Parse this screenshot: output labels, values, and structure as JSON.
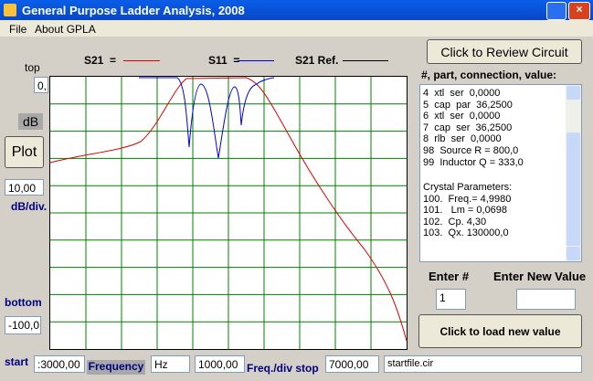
{
  "title_bar": {
    "title": "General Purpose Ladder Analysis, 2008"
  },
  "menu": [
    "File",
    "About GPLA"
  ],
  "legend": {
    "s21": "S21  =",
    "s11": "S11  =",
    "s21_ref": "S21 Ref."
  },
  "left_panel": {
    "top_label": "top",
    "top_value": "0,",
    "unit": "dB",
    "plot_button": "Plot",
    "div_value": "10,00",
    "div_label": "dB/div.",
    "bottom_label": "bottom",
    "bottom_value": "-100,0"
  },
  "bottom_row": {
    "start_label": "start",
    "start_value": ":3000,00",
    "frequency_label": "Frequency",
    "unit": "Hz",
    "div_value": "1000,00",
    "div_stop_label": "Freq./div stop",
    "stop_value": "7000,00",
    "file": "startfile.cir"
  },
  "right_panel": {
    "review_button": "Click to Review Circuit",
    "list_header": "#, part, connection, value:",
    "list": {
      "lines": [
        "4  xtl  ser  0,0000",
        "5  cap  par  36,2500",
        "6  xtl  ser  0,0000",
        "7  cap  ser  36,2500",
        "8  rlb  ser  0,0000",
        "98  Source R = 800,0",
        "99  Inductor Q = 333,0"
      ],
      "crystal": [
        "Crystal Parameters:",
        "100.  Freq.= 4,9980",
        "101.   Lm = 0,0698",
        "102.  Cp. 4,30",
        "103.  Qx. 130000,0"
      ]
    },
    "enter_number_label": "Enter #",
    "enter_value_label": "Enter New Value",
    "enter_number": "1",
    "load_button": "Click to load new value"
  }
}
